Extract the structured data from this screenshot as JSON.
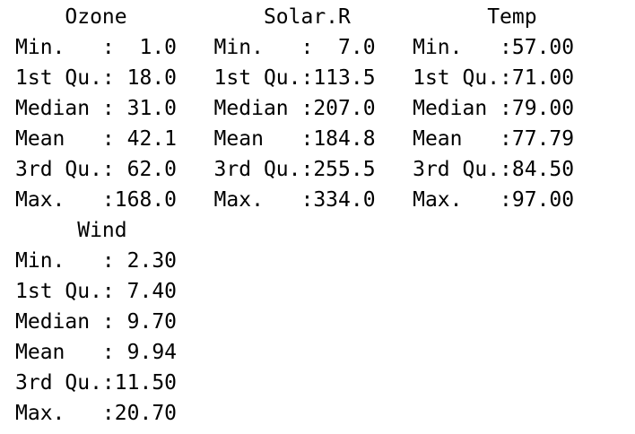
{
  "console": {
    "block1": {
      "header": "    Ozone           Solar.R           Temp      ",
      "rows": [
        "Min.   :  1.0   Min.   :  7.0   Min.   :57.00  ",
        "1st Qu.: 18.0   1st Qu.:113.5   1st Qu.:71.00  ",
        "Median : 31.0   Median :207.0   Median :79.00  ",
        "Mean   : 42.1   Mean   :184.8   Mean   :77.79  ",
        "3rd Qu.: 62.0   3rd Qu.:255.5   3rd Qu.:84.50  ",
        "Max.   :168.0   Max.   :334.0   Max.   :97.00  "
      ]
    },
    "block2": {
      "header": "     Wind      ",
      "rows": [
        "Min.   : 2.30  ",
        "1st Qu.: 7.40  ",
        "Median : 9.70  ",
        "Mean   : 9.94  ",
        "3rd Qu.:11.50  ",
        "Max.   :20.70  "
      ]
    }
  }
}
